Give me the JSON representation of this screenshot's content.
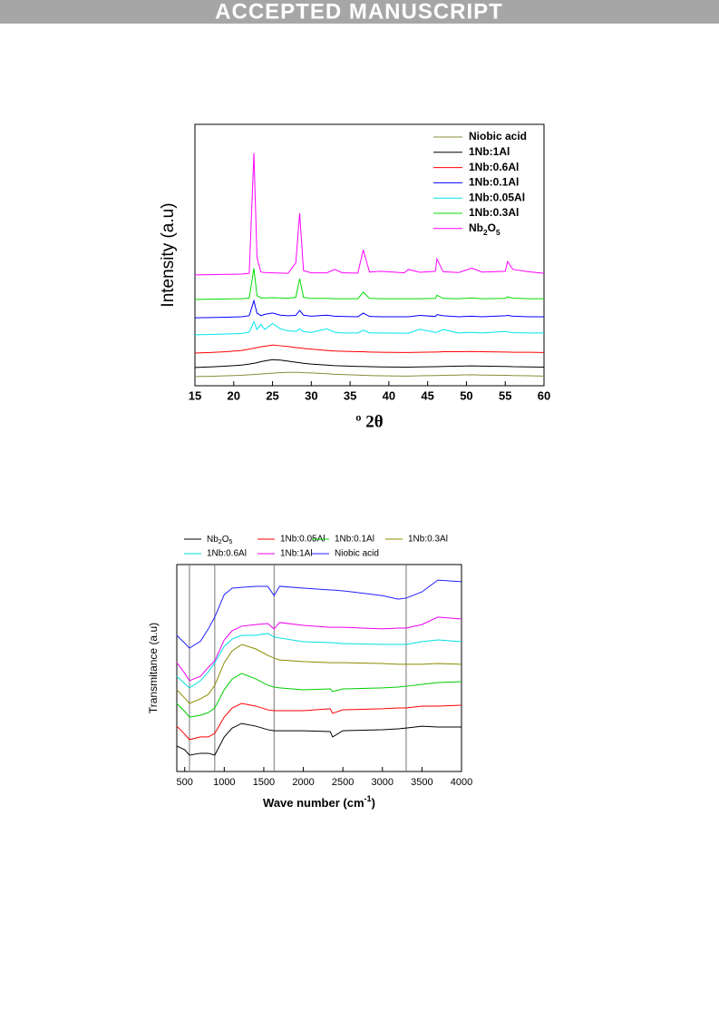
{
  "header": {
    "banner": "ACCEPTED MANUSCRIPT"
  },
  "chart_data": [
    {
      "type": "line",
      "xlabel": "º 2θ",
      "ylabel": "Intensity (a.u)",
      "xlim": [
        15,
        60
      ],
      "xticks": [
        15,
        20,
        25,
        30,
        35,
        40,
        45,
        50,
        55,
        60
      ],
      "ylim": [
        0,
        100
      ],
      "legend": "upper right",
      "x": [
        15,
        17,
        19,
        21,
        22,
        22.6,
        23,
        23.5,
        24,
        25,
        26,
        27,
        28,
        28.5,
        29,
        30,
        32,
        33,
        34,
        36,
        36.7,
        37.5,
        39,
        42,
        42.5,
        44,
        46,
        46.2,
        47,
        49,
        50.7,
        52,
        55,
        55.3,
        56,
        58,
        60
      ],
      "series": [
        {
          "name": "Niobic acid",
          "color": "#8b8b3a",
          "values": [
            3.5,
            3.6,
            3.8,
            4.0,
            4.2,
            4.3,
            4.4,
            4.5,
            4.6,
            4.8,
            5.0,
            5.1,
            5.1,
            5.1,
            5.0,
            4.9,
            4.6,
            4.4,
            4.3,
            4.1,
            4.0,
            3.9,
            3.8,
            3.7,
            3.7,
            3.8,
            3.9,
            3.9,
            4.0,
            4.1,
            4.2,
            4.1,
            4.0,
            4.0,
            3.9,
            3.8,
            3.7
          ]
        },
        {
          "name": "1Nb:1Al",
          "color": "#000000",
          "values": [
            7.0,
            7.2,
            7.5,
            7.9,
            8.3,
            8.6,
            8.8,
            9.2,
            9.5,
            10.0,
            9.8,
            9.4,
            9.0,
            8.8,
            8.6,
            8.3,
            7.9,
            7.7,
            7.6,
            7.4,
            7.4,
            7.3,
            7.2,
            7.1,
            7.1,
            7.2,
            7.3,
            7.3,
            7.4,
            7.5,
            7.6,
            7.5,
            7.4,
            7.4,
            7.3,
            7.2,
            7.1
          ]
        },
        {
          "name": "1Nb:0.6Al",
          "color": "#ff0000",
          "values": [
            12.5,
            12.7,
            13.0,
            13.5,
            14.0,
            14.4,
            14.6,
            14.9,
            15.1,
            15.6,
            15.3,
            15.0,
            14.6,
            14.5,
            14.3,
            14.0,
            13.5,
            13.3,
            13.2,
            13.0,
            13.0,
            12.9,
            12.8,
            12.7,
            12.7,
            12.8,
            12.9,
            12.9,
            13.0,
            13.0,
            13.1,
            13.0,
            12.9,
            12.9,
            12.8,
            12.8,
            12.7
          ]
        },
        {
          "name": "1Nb:0.1Al",
          "color": "#0000ff",
          "values": [
            26.0,
            26.1,
            26.2,
            26.4,
            26.8,
            32.5,
            27.8,
            26.8,
            27.3,
            27.8,
            27.0,
            26.8,
            26.9,
            28.8,
            27.0,
            26.6,
            27.0,
            26.6,
            26.5,
            26.4,
            27.8,
            26.5,
            26.4,
            26.4,
            26.4,
            26.9,
            26.5,
            27.2,
            26.8,
            26.4,
            26.6,
            26.4,
            26.8,
            26.9,
            26.6,
            26.4,
            26.4
          ]
        },
        {
          "name": "1Nb:0.05Al",
          "color": "#00e5ee",
          "values": [
            19.5,
            19.6,
            19.8,
            20.0,
            20.5,
            24.5,
            21.5,
            23.5,
            21.5,
            23.8,
            21.8,
            21.0,
            20.8,
            21.8,
            20.7,
            20.4,
            21.8,
            20.5,
            20.2,
            20.2,
            21.3,
            20.2,
            20.2,
            20.1,
            20.1,
            21.6,
            20.4,
            20.5,
            21.5,
            20.2,
            20.4,
            20.2,
            20.8,
            20.6,
            20.3,
            20.2,
            20.2
          ]
        },
        {
          "name": "1Nb:0.3Al",
          "color": "#00dd00",
          "values": [
            33.0,
            33.1,
            33.2,
            33.3,
            33.5,
            45.0,
            34.5,
            33.6,
            33.6,
            33.7,
            33.6,
            33.5,
            33.8,
            41.0,
            33.8,
            33.4,
            33.4,
            33.3,
            33.3,
            33.3,
            35.8,
            33.4,
            33.3,
            33.3,
            33.3,
            33.3,
            33.4,
            34.6,
            33.4,
            33.3,
            33.6,
            33.3,
            33.4,
            34.0,
            33.5,
            33.3,
            33.3
          ]
        },
        {
          "name": "Nb2O5",
          "color": "#ff00ff",
          "values": [
            42.4,
            42.5,
            42.6,
            42.7,
            43.0,
            89.0,
            49.0,
            43.5,
            43.3,
            43.2,
            43.1,
            43.0,
            47.0,
            66.0,
            44.0,
            43.2,
            43.2,
            44.5,
            43.2,
            43.1,
            52.0,
            43.5,
            43.8,
            43.2,
            44.5,
            43.4,
            43.8,
            48.5,
            43.6,
            43.3,
            45.0,
            43.5,
            43.8,
            47.5,
            44.5,
            43.6,
            43.0
          ]
        }
      ]
    },
    {
      "type": "line",
      "xlabel": "Wave number (cm-1)",
      "ylabel": "Transmitance (a.u)",
      "xlim": [
        400,
        4000
      ],
      "xticks": [
        500,
        1000,
        1500,
        2000,
        2500,
        3000,
        3500,
        4000
      ],
      "ylim": [
        0,
        100
      ],
      "vlines": [
        560,
        880,
        1630,
        3300
      ],
      "legend": "top",
      "x": [
        400,
        500,
        560,
        700,
        800,
        880,
        1000,
        1100,
        1220,
        1400,
        1550,
        1630,
        1700,
        2000,
        2340,
        2370,
        2500,
        3000,
        3200,
        3300,
        3500,
        3700,
        4000
      ],
      "series": [
        {
          "name": "Nb2O5",
          "color": "#000000",
          "values": [
            12.3,
            10.5,
            7.9,
            8.8,
            8.8,
            7.9,
            16.7,
            21.0,
            23.2,
            21.9,
            20.2,
            19.7,
            19.7,
            19.7,
            19.3,
            16.7,
            19.7,
            20.2,
            20.6,
            21.0,
            21.9,
            21.5,
            21.5
          ]
        },
        {
          "name": "1Nb:0.05Al",
          "color": "#ff0000",
          "values": [
            21.9,
            18.0,
            15.4,
            16.7,
            16.7,
            18.4,
            26.3,
            30.7,
            32.9,
            31.6,
            29.8,
            29.4,
            29.4,
            29.4,
            30.3,
            28.1,
            29.8,
            30.3,
            30.7,
            30.7,
            31.6,
            31.6,
            32.0
          ]
        },
        {
          "name": "1Nb:0.1Al",
          "color": "#00cc00",
          "values": [
            32.9,
            29.0,
            26.3,
            27.2,
            28.5,
            30.7,
            39.5,
            44.7,
            47.4,
            44.7,
            41.7,
            40.8,
            40.4,
            39.5,
            39.9,
            38.6,
            39.9,
            40.4,
            40.8,
            41.2,
            42.1,
            43.0,
            43.4
          ]
        },
        {
          "name": "1Nb:0.3Al",
          "color": "#8b8b00",
          "values": [
            39.5,
            35.5,
            32.9,
            35.1,
            37.3,
            41.7,
            52.6,
            58.3,
            61.4,
            59.2,
            56.1,
            54.8,
            53.9,
            53.1,
            52.6,
            52.6,
            52.6,
            52.2,
            51.8,
            51.8,
            51.8,
            52.2,
            51.8
          ]
        },
        {
          "name": "1Nb:0.6Al",
          "color": "#00dddd",
          "values": [
            46.0,
            42.5,
            40.4,
            43.9,
            48.2,
            52.6,
            60.5,
            64.0,
            65.8,
            65.8,
            66.7,
            65.0,
            64.5,
            62.7,
            62.3,
            62.3,
            61.8,
            61.4,
            61.4,
            61.4,
            62.7,
            63.6,
            62.7
          ]
        },
        {
          "name": "1Nb:1Al",
          "color": "#ee00ee",
          "values": [
            52.6,
            47.5,
            43.9,
            46.0,
            50.4,
            53.5,
            63.6,
            68.0,
            70.2,
            71.0,
            71.5,
            68.9,
            72.0,
            70.6,
            69.7,
            69.7,
            69.7,
            68.9,
            69.3,
            69.3,
            71.0,
            74.6,
            73.7
          ]
        },
        {
          "name": "Niobic acid",
          "color": "#2020ff",
          "values": [
            65.8,
            62.0,
            59.6,
            63.0,
            69.0,
            74.6,
            85.5,
            88.6,
            89.0,
            89.5,
            89.5,
            85.0,
            89.5,
            88.6,
            87.7,
            87.7,
            87.3,
            85.0,
            83.3,
            83.8,
            86.8,
            92.5,
            91.7
          ]
        }
      ]
    }
  ]
}
